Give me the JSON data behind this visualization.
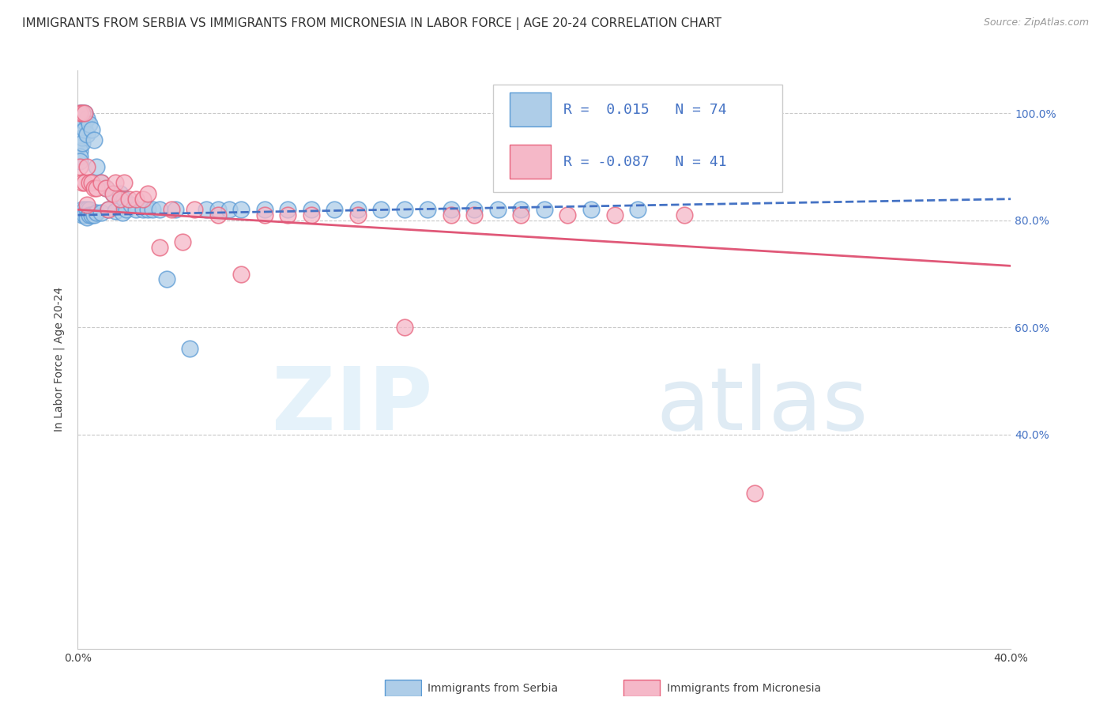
{
  "title": "IMMIGRANTS FROM SERBIA VS IMMIGRANTS FROM MICRONESIA IN LABOR FORCE | AGE 20-24 CORRELATION CHART",
  "source": "Source: ZipAtlas.com",
  "ylabel": "In Labor Force | Age 20-24",
  "xlim": [
    0.0,
    0.4
  ],
  "ylim": [
    0.0,
    1.08
  ],
  "yticks": [
    0.4,
    0.6,
    0.8,
    1.0
  ],
  "ytick_labels": [
    "40.0%",
    "60.0%",
    "80.0%",
    "100.0%"
  ],
  "xticks": [
    0.0,
    0.4
  ],
  "xtick_labels": [
    "0.0%",
    "40.0%"
  ],
  "serbia_R": 0.015,
  "serbia_N": 74,
  "micronesia_R": -0.087,
  "micronesia_N": 41,
  "serbia_color": "#aecde8",
  "micronesia_color": "#f5b8c8",
  "serbia_edge_color": "#5b9bd5",
  "micronesia_edge_color": "#e8637d",
  "serbia_line_color": "#4472c4",
  "micronesia_line_color": "#e05878",
  "background_color": "#ffffff",
  "grid_color": "#c8c8c8",
  "title_fontsize": 11,
  "label_fontsize": 10,
  "tick_fontsize": 10,
  "legend_fontsize": 13,
  "serbia_trend_x0": 0.0,
  "serbia_trend_y0": 0.81,
  "serbia_trend_x1": 0.4,
  "serbia_trend_y1": 0.84,
  "micronesia_trend_x0": 0.0,
  "micronesia_trend_y0": 0.82,
  "micronesia_trend_x1": 0.4,
  "micronesia_trend_y1": 0.715,
  "serbia_scatter_x": [
    0.001,
    0.001,
    0.001,
    0.001,
    0.001,
    0.001,
    0.001,
    0.001,
    0.001,
    0.001,
    0.002,
    0.002,
    0.002,
    0.002,
    0.002,
    0.002,
    0.002,
    0.002,
    0.003,
    0.003,
    0.003,
    0.003,
    0.003,
    0.004,
    0.004,
    0.004,
    0.004,
    0.005,
    0.005,
    0.005,
    0.006,
    0.006,
    0.007,
    0.007,
    0.008,
    0.008,
    0.01,
    0.01,
    0.012,
    0.013,
    0.015,
    0.016,
    0.018,
    0.019,
    0.02,
    0.021,
    0.023,
    0.025,
    0.028,
    0.03,
    0.032,
    0.035,
    0.038,
    0.042,
    0.048,
    0.055,
    0.06,
    0.065,
    0.07,
    0.08,
    0.09,
    0.1,
    0.11,
    0.12,
    0.13,
    0.14,
    0.15,
    0.16,
    0.17,
    0.18,
    0.19,
    0.2,
    0.22,
    0.24
  ],
  "serbia_scatter_y": [
    1.0,
    0.99,
    0.98,
    0.97,
    0.96,
    0.95,
    0.94,
    0.93,
    0.92,
    0.91,
    1.0,
    0.985,
    0.975,
    0.965,
    0.955,
    0.945,
    0.82,
    0.81,
    1.0,
    0.985,
    0.97,
    0.82,
    0.81,
    0.99,
    0.96,
    0.82,
    0.805,
    0.98,
    0.82,
    0.81,
    0.97,
    0.81,
    0.95,
    0.81,
    0.9,
    0.815,
    0.87,
    0.815,
    0.86,
    0.82,
    0.85,
    0.818,
    0.85,
    0.815,
    0.84,
    0.82,
    0.83,
    0.82,
    0.82,
    0.82,
    0.82,
    0.82,
    0.69,
    0.82,
    0.56,
    0.82,
    0.82,
    0.82,
    0.82,
    0.82,
    0.82,
    0.82,
    0.82,
    0.82,
    0.82,
    0.82,
    0.82,
    0.82,
    0.82,
    0.82,
    0.82,
    0.82,
    0.82,
    0.82
  ],
  "micronesia_scatter_x": [
    0.001,
    0.001,
    0.002,
    0.002,
    0.003,
    0.003,
    0.004,
    0.004,
    0.005,
    0.006,
    0.007,
    0.008,
    0.01,
    0.012,
    0.013,
    0.015,
    0.016,
    0.018,
    0.02,
    0.022,
    0.025,
    0.028,
    0.03,
    0.035,
    0.04,
    0.045,
    0.05,
    0.06,
    0.07,
    0.08,
    0.09,
    0.1,
    0.12,
    0.14,
    0.16,
    0.17,
    0.19,
    0.21,
    0.23,
    0.26,
    0.29
  ],
  "micronesia_scatter_y": [
    1.0,
    0.9,
    1.0,
    0.87,
    1.0,
    0.87,
    0.9,
    0.83,
    0.87,
    0.87,
    0.86,
    0.86,
    0.87,
    0.86,
    0.82,
    0.85,
    0.87,
    0.84,
    0.87,
    0.84,
    0.84,
    0.84,
    0.85,
    0.75,
    0.82,
    0.76,
    0.82,
    0.81,
    0.7,
    0.81,
    0.81,
    0.81,
    0.81,
    0.6,
    0.81,
    0.81,
    0.81,
    0.81,
    0.81,
    0.81,
    0.29
  ]
}
